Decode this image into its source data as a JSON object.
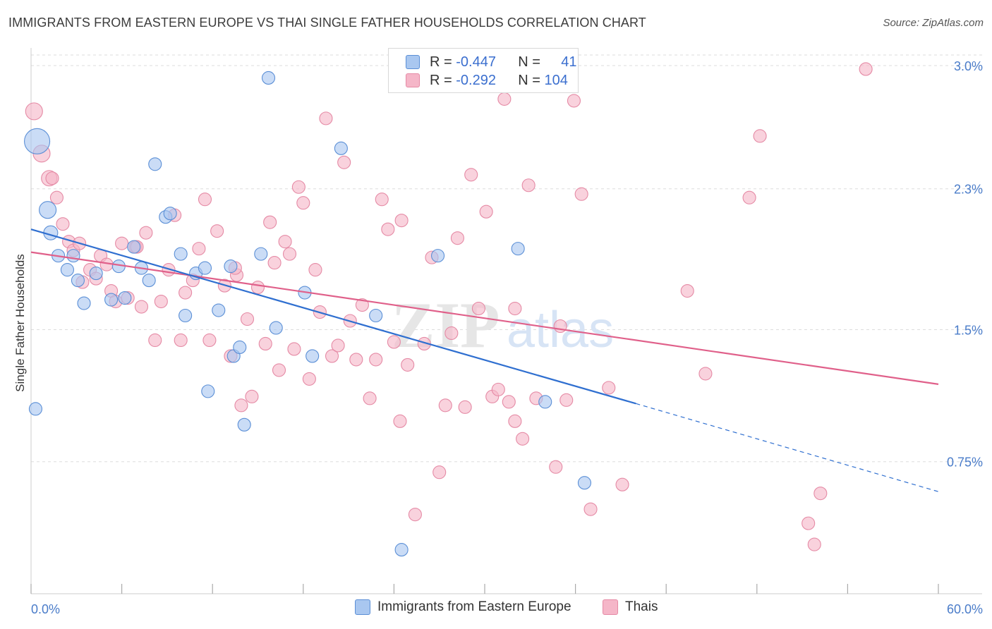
{
  "title": "IMMIGRANTS FROM EASTERN EUROPE VS THAI SINGLE FATHER HOUSEHOLDS CORRELATION CHART",
  "source": "Source: ZipAtlas.com",
  "watermark": {
    "zip": "ZIP",
    "atlas": "atlas"
  },
  "legend": {
    "rows": [
      {
        "r_label": "R =",
        "r_value": "-0.447",
        "n_label": "N =",
        "n_value": "41",
        "color": "#a9c7f0"
      },
      {
        "r_label": "R =",
        "r_value": "-0.292",
        "n_label": "N =",
        "n_value": "104",
        "color": "#f5b6c8"
      }
    ]
  },
  "bottom_legend": [
    {
      "label": "Immigrants from Eastern Europe",
      "color": "#a9c7f0"
    },
    {
      "label": "Thais",
      "color": "#f5b6c8"
    }
  ],
  "colors": {
    "blue_fill": "#a9c7f0",
    "blue_stroke": "#5b8fd6",
    "blue_line": "#2f6fd0",
    "pink_fill": "#f5b6c8",
    "pink_stroke": "#e58aa5",
    "pink_line": "#e0608a",
    "grid": "#dddddd",
    "tick_text": "#4a7cc9"
  },
  "chart_data": {
    "type": "scatter",
    "title": "IMMIGRANTS FROM EASTERN EUROPE VS THAI SINGLE FATHER HOUSEHOLDS CORRELATION CHART",
    "xlabel": "",
    "ylabel": "Single Father Households",
    "xlim": [
      0,
      60
    ],
    "ylim": [
      0,
      3.1
    ],
    "x_tick_labels": [
      "0.0%",
      "60.0%"
    ],
    "y_ticks": [
      0.75,
      1.5,
      2.3,
      3.0
    ],
    "y_tick_labels": [
      "0.75%",
      "1.5%",
      "2.3%",
      "3.0%"
    ],
    "grid": true,
    "series": [
      {
        "name": "Immigrants from Eastern Europe",
        "points": [
          [
            0.4,
            2.57,
            18
          ],
          [
            1.1,
            2.18,
            12
          ],
          [
            1.3,
            2.05,
            10
          ],
          [
            1.8,
            1.92,
            9
          ],
          [
            2.4,
            1.84,
            9
          ],
          [
            2.8,
            1.92,
            9
          ],
          [
            3.1,
            1.78,
            9
          ],
          [
            3.5,
            1.65,
            9
          ],
          [
            4.3,
            1.82,
            9
          ],
          [
            5.3,
            1.67,
            9
          ],
          [
            5.8,
            1.86,
            9
          ],
          [
            6.2,
            1.68,
            9
          ],
          [
            6.8,
            1.97,
            9
          ],
          [
            7.3,
            1.85,
            9
          ],
          [
            7.8,
            1.78,
            9
          ],
          [
            8.2,
            2.44,
            9
          ],
          [
            8.9,
            2.14,
            9
          ],
          [
            9.2,
            2.16,
            9
          ],
          [
            9.9,
            1.93,
            9
          ],
          [
            10.2,
            1.58,
            9
          ],
          [
            10.9,
            1.82,
            9
          ],
          [
            11.5,
            1.85,
            9
          ],
          [
            11.7,
            1.15,
            9
          ],
          [
            12.4,
            1.61,
            9
          ],
          [
            13.2,
            1.86,
            9
          ],
          [
            13.4,
            1.35,
            9
          ],
          [
            13.8,
            1.4,
            9
          ],
          [
            14.1,
            0.96,
            9
          ],
          [
            15.2,
            1.93,
            9
          ],
          [
            15.7,
            2.93,
            9
          ],
          [
            16.2,
            1.51,
            9
          ],
          [
            18.1,
            1.71,
            9
          ],
          [
            18.6,
            1.35,
            9
          ],
          [
            20.5,
            2.53,
            9
          ],
          [
            22.8,
            1.58,
            9
          ],
          [
            24.5,
            0.25,
            9
          ],
          [
            26.9,
            1.92,
            9
          ],
          [
            32.2,
            1.96,
            9
          ],
          [
            36.6,
            0.63,
            9
          ],
          [
            0.3,
            1.05,
            9
          ],
          [
            34.0,
            1.09,
            9
          ]
        ]
      },
      {
        "name": "Thais",
        "points": [
          [
            0.2,
            2.74,
            12
          ],
          [
            0.7,
            2.5,
            12
          ],
          [
            1.2,
            2.36,
            11
          ],
          [
            1.4,
            2.36,
            9
          ],
          [
            1.7,
            2.25,
            9
          ],
          [
            2.1,
            2.1,
            9
          ],
          [
            2.5,
            2.0,
            9
          ],
          [
            2.8,
            1.95,
            9
          ],
          [
            3.2,
            1.99,
            9
          ],
          [
            3.4,
            1.77,
            9
          ],
          [
            3.9,
            1.84,
            9
          ],
          [
            4.3,
            1.79,
            9
          ],
          [
            4.6,
            1.92,
            9
          ],
          [
            5.0,
            1.87,
            9
          ],
          [
            5.3,
            1.72,
            9
          ],
          [
            5.6,
            1.66,
            9
          ],
          [
            6.0,
            1.99,
            9
          ],
          [
            6.4,
            1.68,
            9
          ],
          [
            6.9,
            1.97,
            9
          ],
          [
            7.3,
            1.63,
            9
          ],
          [
            7.6,
            2.05,
            9
          ],
          [
            8.2,
            1.44,
            9
          ],
          [
            8.6,
            1.66,
            9
          ],
          [
            9.1,
            1.84,
            9
          ],
          [
            9.5,
            2.15,
            9
          ],
          [
            9.9,
            1.44,
            9
          ],
          [
            10.2,
            1.71,
            9
          ],
          [
            10.7,
            1.78,
            9
          ],
          [
            11.1,
            1.96,
            9
          ],
          [
            11.5,
            2.24,
            9
          ],
          [
            11.8,
            1.44,
            9
          ],
          [
            12.3,
            2.06,
            9
          ],
          [
            12.8,
            1.75,
            9
          ],
          [
            13.2,
            1.35,
            9
          ],
          [
            13.6,
            1.81,
            9
          ],
          [
            13.9,
            1.07,
            9
          ],
          [
            14.3,
            1.56,
            9
          ],
          [
            14.6,
            1.12,
            9
          ],
          [
            15.0,
            1.74,
            9
          ],
          [
            15.5,
            1.42,
            9
          ],
          [
            15.8,
            2.11,
            9
          ],
          [
            16.1,
            1.88,
            9
          ],
          [
            16.4,
            1.27,
            9
          ],
          [
            16.8,
            2.0,
            9
          ],
          [
            17.1,
            1.93,
            9
          ],
          [
            17.4,
            1.39,
            9
          ],
          [
            17.7,
            2.31,
            9
          ],
          [
            18.0,
            2.22,
            9
          ],
          [
            18.4,
            1.22,
            9
          ],
          [
            18.8,
            1.84,
            9
          ],
          [
            19.1,
            1.6,
            9
          ],
          [
            19.5,
            2.7,
            9
          ],
          [
            19.9,
            1.35,
            9
          ],
          [
            20.3,
            1.41,
            9
          ],
          [
            20.7,
            2.45,
            9
          ],
          [
            21.1,
            1.55,
            9
          ],
          [
            21.5,
            1.33,
            9
          ],
          [
            21.9,
            1.64,
            9
          ],
          [
            22.4,
            1.11,
            9
          ],
          [
            22.8,
            1.33,
            9
          ],
          [
            23.2,
            2.24,
            9
          ],
          [
            23.6,
            2.07,
            9
          ],
          [
            24.0,
            1.43,
            9
          ],
          [
            24.5,
            2.12,
            9
          ],
          [
            24.9,
            1.3,
            9
          ],
          [
            25.4,
            0.45,
            9
          ],
          [
            26.0,
            1.42,
            9
          ],
          [
            26.5,
            1.91,
            9
          ],
          [
            27.0,
            0.69,
            9
          ],
          [
            27.4,
            1.07,
            9
          ],
          [
            27.8,
            1.48,
            9
          ],
          [
            28.2,
            2.02,
            9
          ],
          [
            28.7,
            1.06,
            9
          ],
          [
            29.1,
            2.38,
            9
          ],
          [
            29.6,
            1.62,
            9
          ],
          [
            30.1,
            2.17,
            9
          ],
          [
            30.5,
            1.12,
            9
          ],
          [
            30.9,
            1.16,
            9
          ],
          [
            31.3,
            2.81,
            9
          ],
          [
            31.6,
            1.09,
            9
          ],
          [
            32.0,
            0.98,
            9
          ],
          [
            32.5,
            0.88,
            9
          ],
          [
            32.9,
            2.32,
            9
          ],
          [
            33.4,
            1.11,
            9
          ],
          [
            34.7,
            0.72,
            9
          ],
          [
            35.0,
            1.52,
            9
          ],
          [
            35.4,
            1.1,
            9
          ],
          [
            35.9,
            2.8,
            9
          ],
          [
            36.4,
            2.27,
            9
          ],
          [
            37.0,
            0.48,
            9
          ],
          [
            38.2,
            1.17,
            9
          ],
          [
            39.1,
            0.62,
            9
          ],
          [
            43.4,
            1.72,
            9
          ],
          [
            44.6,
            1.25,
            9
          ],
          [
            47.5,
            2.25,
            9
          ],
          [
            48.2,
            2.6,
            9
          ],
          [
            51.4,
            0.4,
            9
          ],
          [
            51.8,
            0.28,
            9
          ],
          [
            52.2,
            0.57,
            9
          ],
          [
            55.2,
            2.98,
            9
          ],
          [
            32.0,
            1.62,
            9
          ],
          [
            13.5,
            1.85,
            9
          ],
          [
            7.0,
            1.97,
            9
          ],
          [
            24.4,
            0.98,
            9
          ]
        ]
      }
    ],
    "trend_lines": [
      {
        "series": "Immigrants from Eastern Europe",
        "x0": 0.0,
        "y0": 2.07,
        "x1": 40.0,
        "y1": 1.08,
        "dashed_to_x": 60.0,
        "dashed_to_y": 0.58
      },
      {
        "series": "Thais",
        "x0": 0.0,
        "y0": 1.94,
        "x1": 60.0,
        "y1": 1.19
      }
    ]
  }
}
